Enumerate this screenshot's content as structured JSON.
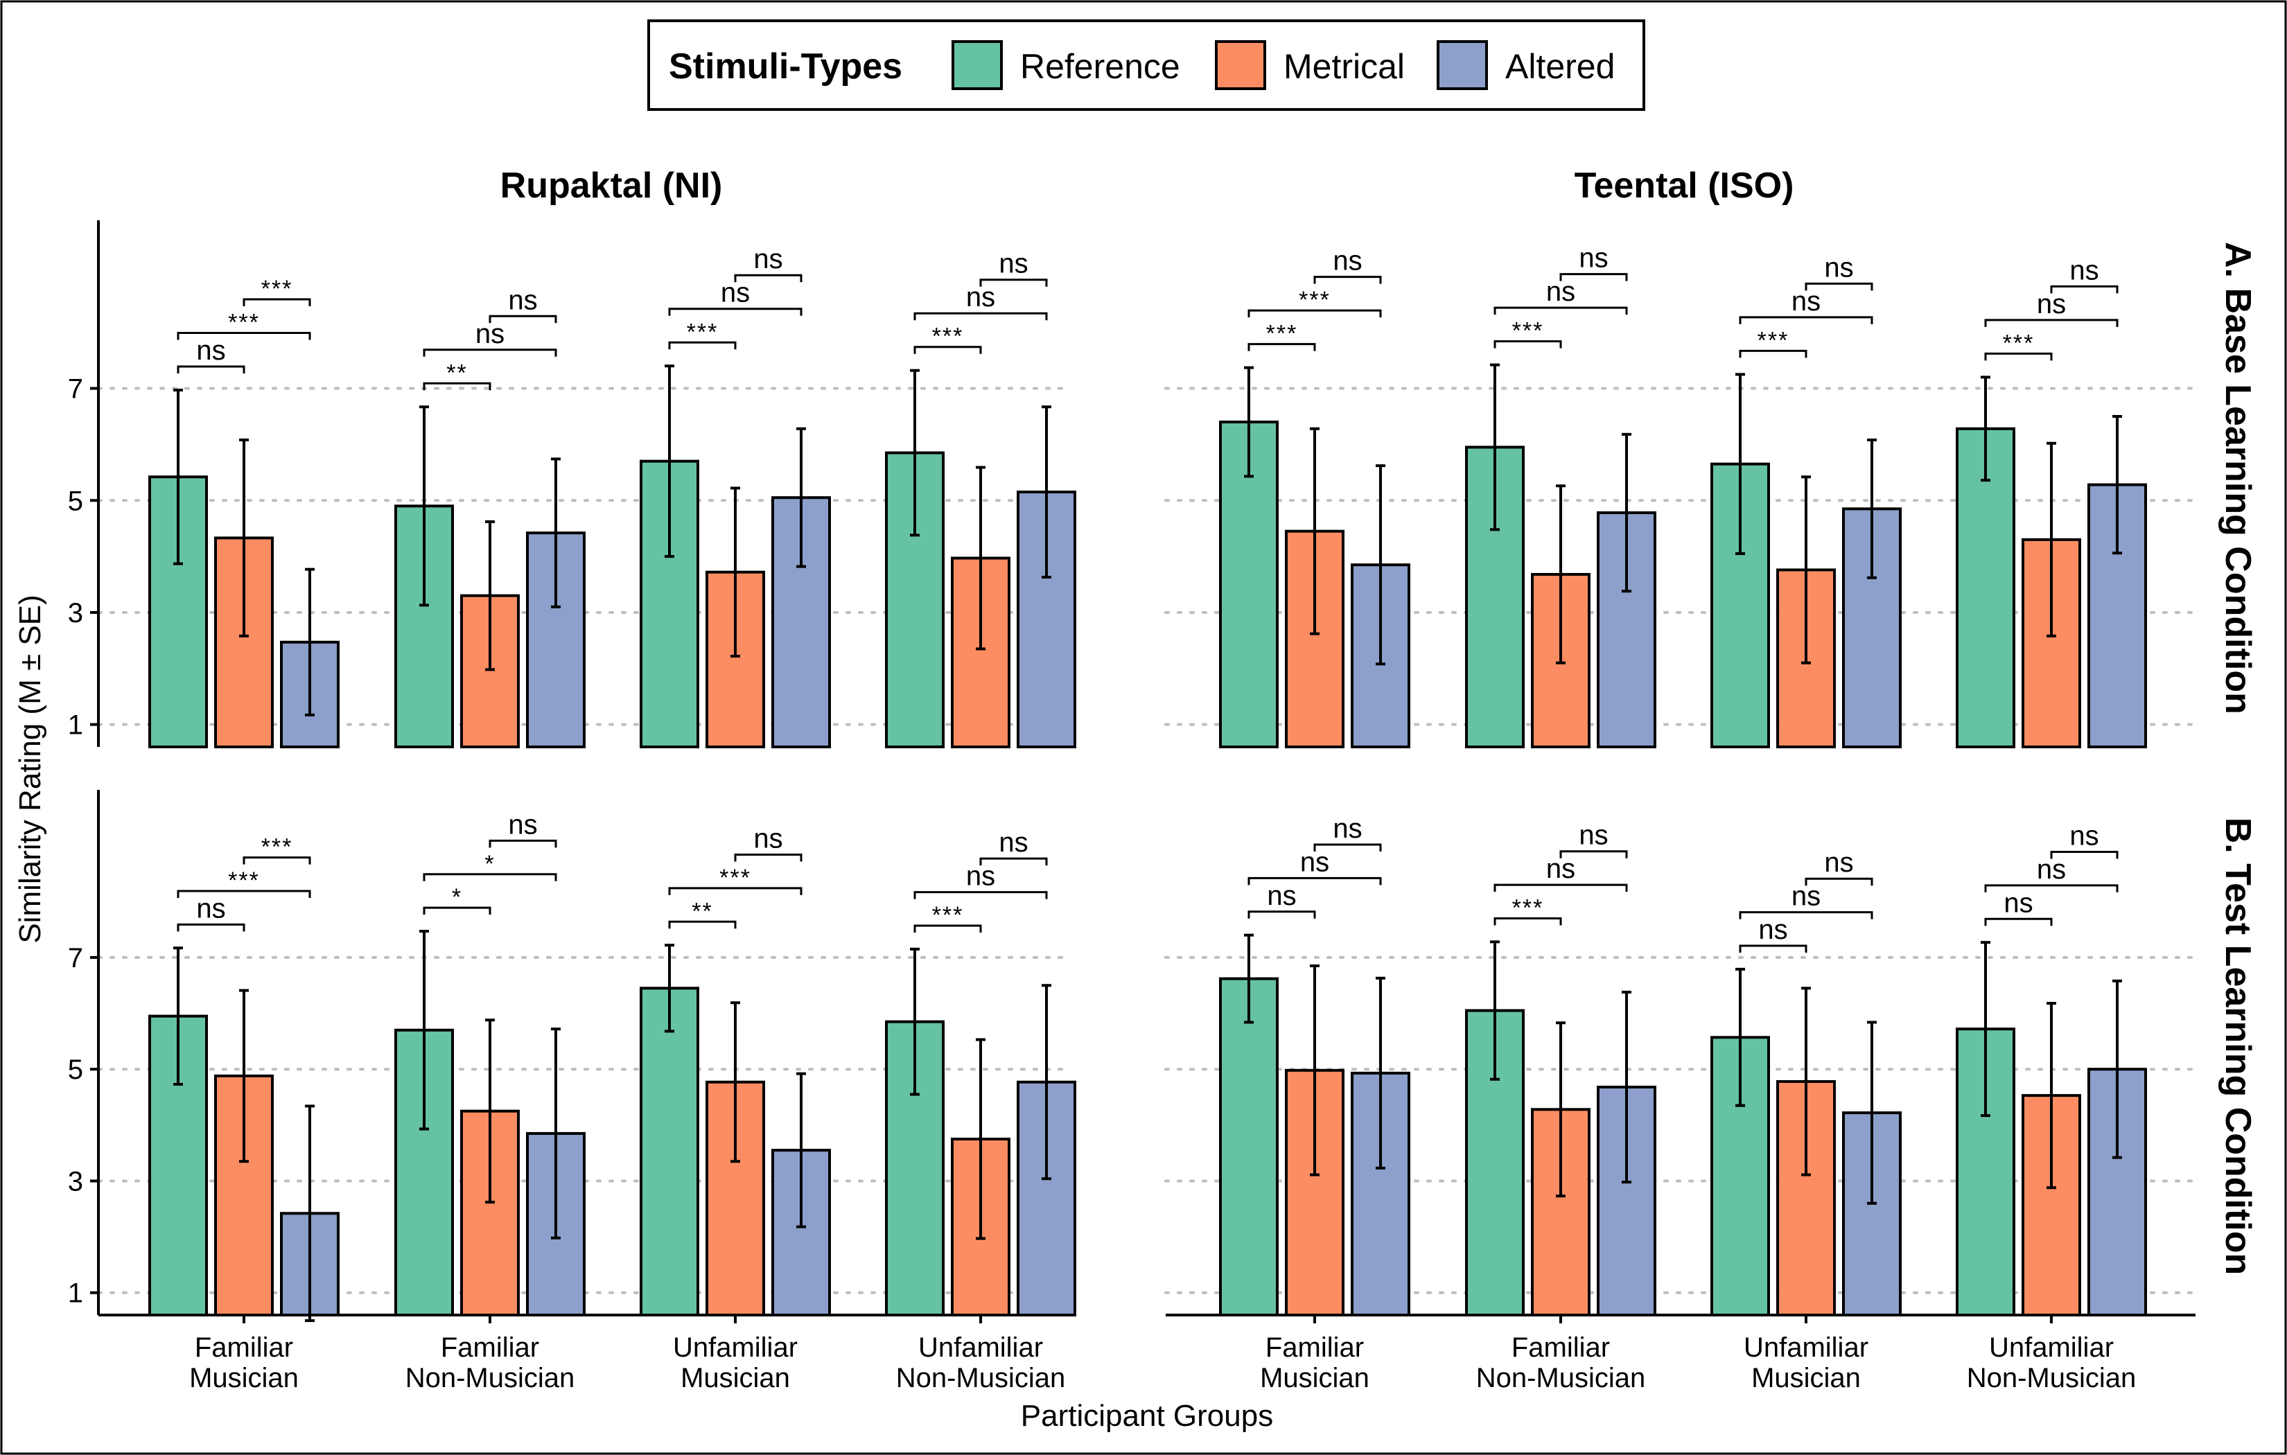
{
  "legend": {
    "title": "Stimuli-Types",
    "items": [
      {
        "label": "Reference",
        "color": "#66c2a5"
      },
      {
        "label": "Metrical",
        "color": "#fc8d62"
      },
      {
        "label": "Altered",
        "color": "#8da0cb"
      }
    ]
  },
  "axes": {
    "xlabel": "Participant Groups",
    "ylabel": "Similarity Rating (M ± SE)",
    "yticks": [
      1,
      3,
      5,
      7
    ],
    "ylim": [
      0.6,
      10
    ]
  },
  "chart_data": {
    "type": "bar",
    "categories": [
      [
        "Familiar",
        "Musician"
      ],
      [
        "Familiar",
        "Non-Musician"
      ],
      [
        "Unfamiliar",
        "Musician"
      ],
      [
        "Unfamiliar",
        "Non-Musician"
      ]
    ],
    "panels": [
      {
        "row": "A. Base Learning Condition",
        "column": "Rupaktal (NI)",
        "groups": [
          {
            "means": [
              5.42,
              4.33,
              2.47
            ],
            "se": [
              1.55,
              1.75,
              1.3
            ],
            "sig": [
              "ns",
              "***",
              "***"
            ]
          },
          {
            "means": [
              4.9,
              3.3,
              4.42
            ],
            "se": [
              1.77,
              1.32,
              1.32
            ],
            "sig": [
              "**",
              "ns",
              "ns"
            ]
          },
          {
            "means": [
              5.7,
              3.72,
              5.05
            ],
            "se": [
              1.7,
              1.5,
              1.23
            ],
            "sig": [
              "***",
              "ns",
              "ns"
            ]
          },
          {
            "means": [
              5.85,
              3.97,
              5.15
            ],
            "se": [
              1.47,
              1.62,
              1.52
            ],
            "sig": [
              "***",
              "ns",
              "ns"
            ]
          }
        ]
      },
      {
        "row": "A. Base Learning Condition",
        "column": "Teental (ISO)",
        "groups": [
          {
            "means": [
              6.4,
              4.45,
              3.85
            ],
            "se": [
              0.97,
              1.83,
              1.77
            ],
            "sig": [
              "***",
              "***",
              "ns"
            ]
          },
          {
            "means": [
              5.95,
              3.68,
              4.78
            ],
            "se": [
              1.47,
              1.58,
              1.4
            ],
            "sig": [
              "***",
              "ns",
              "ns"
            ]
          },
          {
            "means": [
              5.65,
              3.76,
              4.85
            ],
            "se": [
              1.6,
              1.66,
              1.23
            ],
            "sig": [
              "***",
              "ns",
              "ns"
            ]
          },
          {
            "means": [
              6.28,
              4.3,
              5.28
            ],
            "se": [
              0.92,
              1.72,
              1.22
            ],
            "sig": [
              "***",
              "ns",
              "ns"
            ]
          }
        ]
      },
      {
        "row": "B. Test Learning Condition",
        "column": "Rupaktal (NI)",
        "groups": [
          {
            "means": [
              5.95,
              4.88,
              2.42
            ],
            "se": [
              1.22,
              1.53,
              1.92
            ],
            "sig": [
              "ns",
              "***",
              "***"
            ]
          },
          {
            "means": [
              5.7,
              4.25,
              3.85
            ],
            "se": [
              1.77,
              1.63,
              1.87
            ],
            "sig": [
              "*",
              "*",
              "ns"
            ]
          },
          {
            "means": [
              6.45,
              4.77,
              3.55
            ],
            "se": [
              0.77,
              1.42,
              1.37
            ],
            "sig": [
              "**",
              "***",
              "ns"
            ]
          },
          {
            "means": [
              5.85,
              3.75,
              4.77
            ],
            "se": [
              1.3,
              1.78,
              1.73
            ],
            "sig": [
              "***",
              "ns",
              "ns"
            ]
          }
        ]
      },
      {
        "row": "B. Test Learning Condition",
        "column": "Teental (ISO)",
        "groups": [
          {
            "means": [
              6.62,
              4.98,
              4.93
            ],
            "se": [
              0.78,
              1.87,
              1.7
            ],
            "sig": [
              "ns",
              "ns",
              "ns"
            ]
          },
          {
            "means": [
              6.05,
              4.28,
              4.68
            ],
            "se": [
              1.23,
              1.55,
              1.7
            ],
            "sig": [
              "***",
              "ns",
              "ns"
            ]
          },
          {
            "means": [
              5.57,
              4.78,
              4.22
            ],
            "se": [
              1.22,
              1.67,
              1.62
            ],
            "sig": [
              "ns",
              "ns",
              "ns"
            ]
          },
          {
            "means": [
              5.72,
              4.53,
              5.0
            ],
            "se": [
              1.55,
              1.65,
              1.58
            ],
            "sig": [
              "ns",
              "ns",
              "ns"
            ]
          }
        ]
      }
    ]
  }
}
